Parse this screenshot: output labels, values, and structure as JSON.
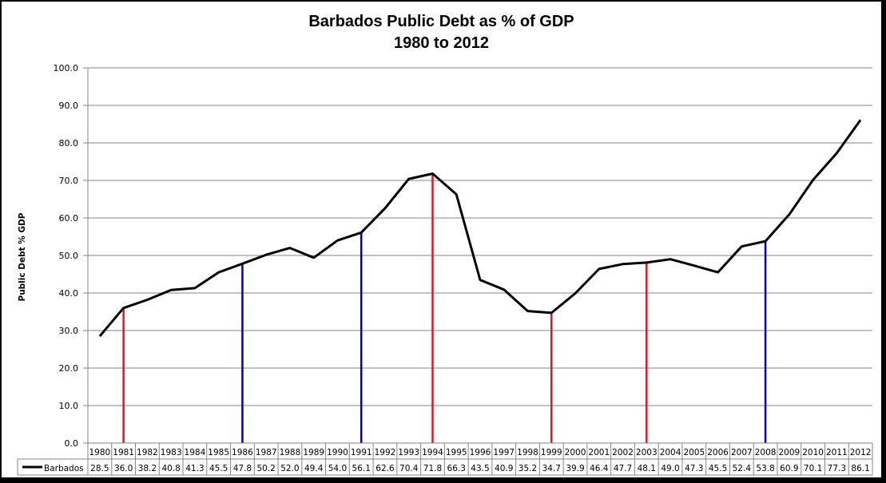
{
  "chart_data": {
    "type": "line",
    "title": "Barbados Public Debt as % of GDP",
    "subtitle": "1980 to 2012",
    "xlabel": "",
    "ylabel": "Public Debt % GDP",
    "ylim": [
      0,
      100
    ],
    "yticks": [
      "0.0",
      "10.0",
      "20.0",
      "30.0",
      "40.0",
      "50.0",
      "60.0",
      "70.0",
      "80.0",
      "90.0",
      "100.0"
    ],
    "grid": true,
    "legend_position": "data-table",
    "categories": [
      "1980",
      "1981",
      "1982",
      "1983",
      "1984",
      "1985",
      "1986",
      "1987",
      "1988",
      "1989",
      "1990",
      "1991",
      "1992",
      "1993",
      "1994",
      "1995",
      "1996",
      "1997",
      "1998",
      "1999",
      "2000",
      "2001",
      "2002",
      "2003",
      "2004",
      "2005",
      "2006",
      "2007",
      "2008",
      "2009",
      "2010",
      "2011",
      "2012"
    ],
    "series": [
      {
        "name": "Barbados",
        "color": "#000000",
        "values": [
          28.5,
          36.0,
          38.2,
          40.8,
          41.3,
          45.5,
          47.8,
          50.2,
          52.0,
          49.4,
          54.0,
          56.1,
          62.6,
          70.4,
          71.8,
          66.3,
          43.5,
          40.9,
          35.2,
          34.7,
          39.9,
          46.4,
          47.7,
          48.1,
          49.0,
          47.3,
          45.5,
          52.4,
          53.8,
          60.9,
          70.1,
          77.3,
          86.1
        ],
        "labels": [
          "28.5",
          "36.0",
          "38.2",
          "40.8",
          "41.3",
          "45.5",
          "47.8",
          "50.2",
          "52.0",
          "49.4",
          "54.0",
          "56.1",
          "62.6",
          "70.4",
          "71.8",
          "66.3",
          "43.5",
          "40.9",
          "35.2",
          "34.7",
          "39.9",
          "46.4",
          "47.7",
          "48.1",
          "49.0",
          "47.3",
          "45.5",
          "52.4",
          "53.8",
          "60.9",
          "70.1",
          "77.3",
          "86.1"
        ]
      }
    ],
    "annotations": {
      "red_markers": [
        "1981",
        "1994",
        "1999",
        "2003"
      ],
      "blue_markers": [
        "1986",
        "1991",
        "2008"
      ],
      "red_color": "#e8141c",
      "blue_color": "#0000b4"
    }
  }
}
